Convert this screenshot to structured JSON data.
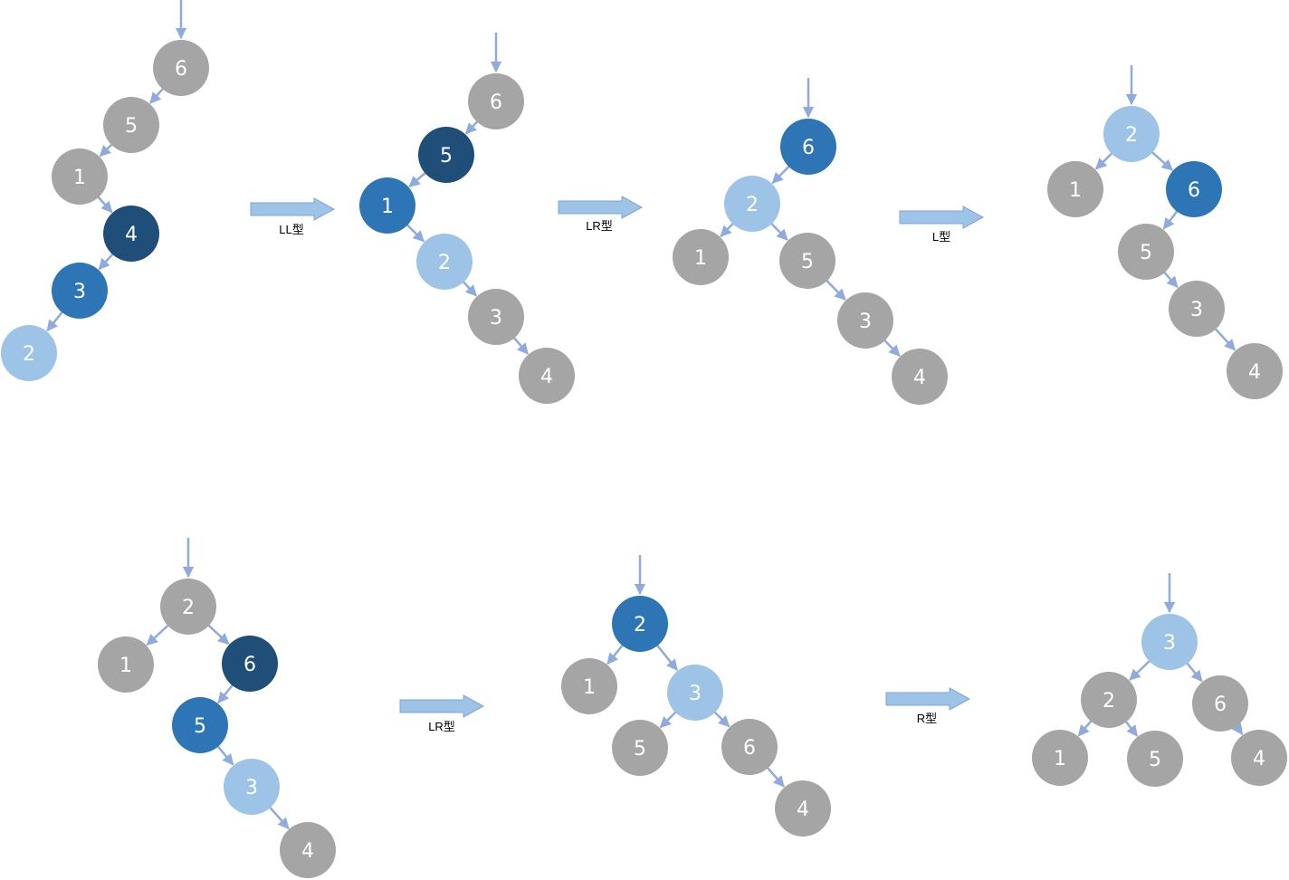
{
  "colors": {
    "gray": "#a5a5a5",
    "darkblue": "#1f4e79",
    "blue": "#2e75b6",
    "lightblue": "#9dc3e6",
    "edge": "#8faadc",
    "bigarrow_fill": "#9dc3e6",
    "bigarrow_stroke": "#7fa6d6"
  },
  "trees": [
    {
      "id": "t1",
      "nodes": [
        {
          "id": "n6",
          "label": "6",
          "color": "gray"
        },
        {
          "id": "n5",
          "label": "5",
          "color": "gray"
        },
        {
          "id": "n1",
          "label": "1",
          "color": "gray"
        },
        {
          "id": "n4",
          "label": "4",
          "color": "darkblue"
        },
        {
          "id": "n3",
          "label": "3",
          "color": "blue"
        },
        {
          "id": "n2",
          "label": "2",
          "color": "lightblue"
        }
      ],
      "edges": [
        [
          "n6",
          "n5"
        ],
        [
          "n5",
          "n1"
        ],
        [
          "n1",
          "n4"
        ],
        [
          "n4",
          "n3"
        ],
        [
          "n3",
          "n2"
        ]
      ],
      "root": "n6"
    },
    {
      "id": "t2",
      "nodes": [
        {
          "id": "n6",
          "label": "6",
          "color": "gray"
        },
        {
          "id": "n5",
          "label": "5",
          "color": "darkblue"
        },
        {
          "id": "n1",
          "label": "1",
          "color": "blue"
        },
        {
          "id": "n2",
          "label": "2",
          "color": "lightblue"
        },
        {
          "id": "n3",
          "label": "3",
          "color": "gray"
        },
        {
          "id": "n4",
          "label": "4",
          "color": "gray"
        }
      ],
      "edges": [
        [
          "n6",
          "n5"
        ],
        [
          "n5",
          "n1"
        ],
        [
          "n1",
          "n2"
        ],
        [
          "n2",
          "n3"
        ],
        [
          "n3",
          "n4"
        ]
      ],
      "root": "n6"
    },
    {
      "id": "t3",
      "nodes": [
        {
          "id": "n6",
          "label": "6",
          "color": "blue"
        },
        {
          "id": "n2",
          "label": "2",
          "color": "lightblue"
        },
        {
          "id": "n1",
          "label": "1",
          "color": "gray"
        },
        {
          "id": "n5",
          "label": "5",
          "color": "gray"
        },
        {
          "id": "n3",
          "label": "3",
          "color": "gray"
        },
        {
          "id": "n4",
          "label": "4",
          "color": "gray"
        }
      ],
      "edges": [
        [
          "n6",
          "n2"
        ],
        [
          "n2",
          "n1"
        ],
        [
          "n2",
          "n5"
        ],
        [
          "n5",
          "n3"
        ],
        [
          "n3",
          "n4"
        ]
      ],
      "root": "n6"
    },
    {
      "id": "t4",
      "nodes": [
        {
          "id": "n2",
          "label": "2",
          "color": "lightblue"
        },
        {
          "id": "n1",
          "label": "1",
          "color": "gray"
        },
        {
          "id": "n6",
          "label": "6",
          "color": "blue"
        },
        {
          "id": "n5",
          "label": "5",
          "color": "gray"
        },
        {
          "id": "n3",
          "label": "3",
          "color": "gray"
        },
        {
          "id": "n4",
          "label": "4",
          "color": "gray"
        }
      ],
      "edges": [
        [
          "n2",
          "n1"
        ],
        [
          "n2",
          "n6"
        ],
        [
          "n6",
          "n5"
        ],
        [
          "n5",
          "n3"
        ],
        [
          "n3",
          "n4"
        ]
      ],
      "root": "n2"
    },
    {
      "id": "t5",
      "nodes": [
        {
          "id": "n2",
          "label": "2",
          "color": "gray"
        },
        {
          "id": "n1",
          "label": "1",
          "color": "gray"
        },
        {
          "id": "n6",
          "label": "6",
          "color": "darkblue"
        },
        {
          "id": "n5",
          "label": "5",
          "color": "blue"
        },
        {
          "id": "n3",
          "label": "3",
          "color": "lightblue"
        },
        {
          "id": "n4",
          "label": "4",
          "color": "gray"
        }
      ],
      "edges": [
        [
          "n2",
          "n1"
        ],
        [
          "n2",
          "n6"
        ],
        [
          "n6",
          "n5"
        ],
        [
          "n5",
          "n3"
        ],
        [
          "n3",
          "n4"
        ]
      ],
      "root": "n2"
    },
    {
      "id": "t6",
      "nodes": [
        {
          "id": "n2",
          "label": "2",
          "color": "blue"
        },
        {
          "id": "n1",
          "label": "1",
          "color": "gray"
        },
        {
          "id": "n3",
          "label": "3",
          "color": "lightblue"
        },
        {
          "id": "n5",
          "label": "5",
          "color": "gray"
        },
        {
          "id": "n6",
          "label": "6",
          "color": "gray"
        },
        {
          "id": "n4",
          "label": "4",
          "color": "gray"
        }
      ],
      "edges": [
        [
          "n2",
          "n1"
        ],
        [
          "n2",
          "n3"
        ],
        [
          "n3",
          "n5"
        ],
        [
          "n3",
          "n6"
        ],
        [
          "n6",
          "n4"
        ]
      ],
      "root": "n2"
    },
    {
      "id": "t7",
      "nodes": [
        {
          "id": "n3",
          "label": "3",
          "color": "lightblue"
        },
        {
          "id": "n2",
          "label": "2",
          "color": "gray"
        },
        {
          "id": "n6",
          "label": "6",
          "color": "gray"
        },
        {
          "id": "n1",
          "label": "1",
          "color": "gray"
        },
        {
          "id": "n5",
          "label": "5",
          "color": "gray"
        },
        {
          "id": "n4",
          "label": "4",
          "color": "gray"
        }
      ],
      "edges": [
        [
          "n3",
          "n2"
        ],
        [
          "n3",
          "n6"
        ],
        [
          "n2",
          "n1"
        ],
        [
          "n2",
          "n5"
        ],
        [
          "n6",
          "n4"
        ]
      ],
      "root": "n3"
    }
  ],
  "steps": [
    {
      "id": "s1",
      "label": "LL型"
    },
    {
      "id": "s2",
      "label": "LR型"
    },
    {
      "id": "s3",
      "label": "L型"
    },
    {
      "id": "s4",
      "label": "LR型"
    },
    {
      "id": "s5",
      "label": "R型"
    }
  ]
}
